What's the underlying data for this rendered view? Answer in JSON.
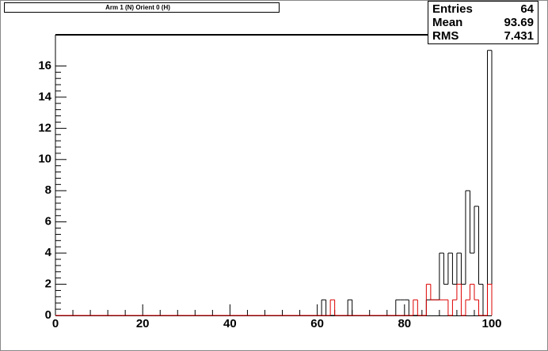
{
  "chart_data": {
    "type": "step-histogram",
    "title": "Arm 1 (N) Orient 0 (H)",
    "bins": [
      0,
      1,
      2,
      3,
      4,
      5,
      6,
      7,
      8,
      9,
      10,
      11,
      12,
      13,
      14,
      15,
      16,
      17,
      18,
      19,
      20,
      21,
      22,
      23,
      24,
      25,
      26,
      27,
      28,
      29,
      30,
      31,
      32,
      33,
      34,
      35,
      36,
      37,
      38,
      39,
      40,
      41,
      42,
      43,
      44,
      45,
      46,
      47,
      48,
      49,
      50,
      51,
      52,
      53,
      54,
      55,
      56,
      57,
      58,
      59,
      60,
      61,
      62,
      63,
      64,
      65,
      66,
      67,
      68,
      69,
      70,
      71,
      72,
      73,
      74,
      75,
      76,
      77,
      78,
      79,
      80,
      81,
      82,
      83,
      84,
      85,
      86,
      87,
      88,
      89,
      90,
      91,
      92,
      93,
      94,
      95,
      96,
      97,
      98,
      99,
      100
    ],
    "series": [
      {
        "color": "#000000",
        "values": [
          0,
          0,
          0,
          0,
          0,
          0,
          0,
          0,
          0,
          0,
          0,
          0,
          0,
          0,
          0,
          0,
          0,
          0,
          0,
          0,
          0,
          0,
          0,
          0,
          0,
          0,
          0,
          0,
          0,
          0,
          0,
          0,
          0,
          0,
          0,
          0,
          0,
          0,
          0,
          0,
          0,
          0,
          0,
          0,
          0,
          0,
          0,
          0,
          0,
          0,
          0,
          0,
          0,
          0,
          0,
          0,
          0,
          0,
          0,
          0,
          0,
          1,
          0,
          0,
          0,
          0,
          0,
          1,
          0,
          0,
          0,
          0,
          0,
          0,
          0,
          0,
          0,
          0,
          1,
          1,
          1,
          0,
          0,
          0,
          0,
          1,
          1,
          1,
          4,
          2,
          4,
          2,
          4,
          2,
          8,
          4,
          7,
          2,
          0,
          17
        ]
      },
      {
        "color": "#dd0000",
        "values": [
          0,
          0,
          0,
          0,
          0,
          0,
          0,
          0,
          0,
          0,
          0,
          0,
          0,
          0,
          0,
          0,
          0,
          0,
          0,
          0,
          0,
          0,
          0,
          0,
          0,
          0,
          0,
          0,
          0,
          0,
          0,
          0,
          0,
          0,
          0,
          0,
          0,
          0,
          0,
          0,
          0,
          0,
          0,
          0,
          0,
          0,
          0,
          0,
          0,
          0,
          0,
          0,
          0,
          0,
          0,
          0,
          0,
          0,
          0,
          0,
          0,
          0,
          0,
          1,
          0,
          0,
          0,
          0,
          0,
          0,
          0,
          0,
          0,
          0,
          0,
          0,
          0,
          0,
          0,
          0,
          0,
          0,
          1,
          0,
          0,
          2,
          1,
          1,
          1,
          1,
          0,
          1,
          2,
          0,
          1,
          2,
          1,
          0,
          0,
          2
        ]
      }
    ],
    "xlim": [
      0,
      100
    ],
    "xticks": [
      0,
      20,
      40,
      60,
      80,
      100
    ],
    "ylim": [
      0,
      18
    ],
    "yticks": [
      0,
      2,
      4,
      6,
      8,
      10,
      12,
      14,
      16
    ],
    "stats": [
      {
        "label": "Entries",
        "value": 64
      },
      {
        "label": "Mean",
        "value": 93.69
      },
      {
        "label": "RMS",
        "value": 7.431
      }
    ]
  }
}
